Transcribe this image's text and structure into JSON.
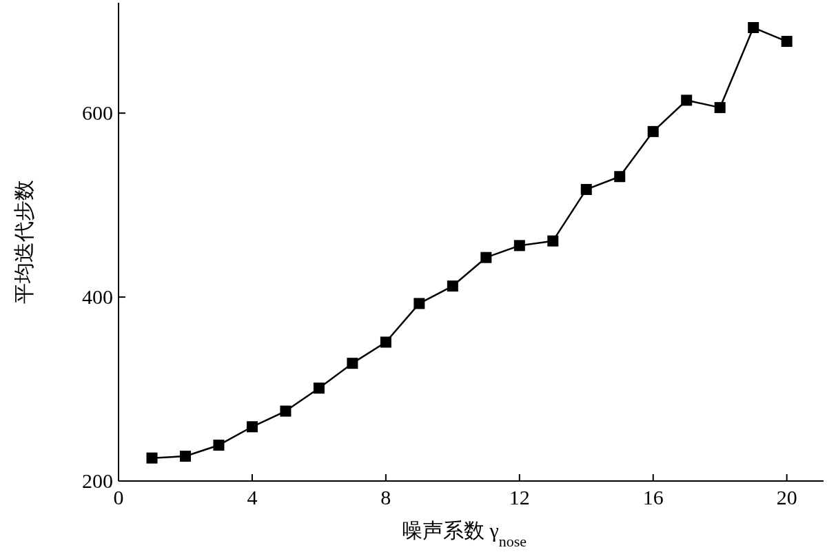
{
  "chart_data": {
    "type": "line",
    "xlabel": "噪声系数 γ$_{nose}$",
    "ylabel": "平均迭代步数",
    "x": [
      1,
      2,
      3,
      4,
      5,
      6,
      7,
      8,
      9,
      10,
      11,
      12,
      13,
      14,
      15,
      16,
      17,
      18,
      19,
      20
    ],
    "series": [
      {
        "color": "#000000",
        "values": [
          225,
          227,
          239,
          259,
          276,
          301,
          328,
          351,
          393,
          412,
          443,
          456,
          461,
          517,
          531,
          580,
          614,
          606,
          693,
          678
        ]
      }
    ],
    "xlim": [
      0,
      21.1
    ],
    "ylim": [
      200,
      720
    ],
    "xticks": [
      0,
      4,
      8,
      12,
      16,
      20
    ],
    "yticks": [
      200,
      400,
      600
    ],
    "marker": "square",
    "line_style": "solid",
    "grid": false
  }
}
